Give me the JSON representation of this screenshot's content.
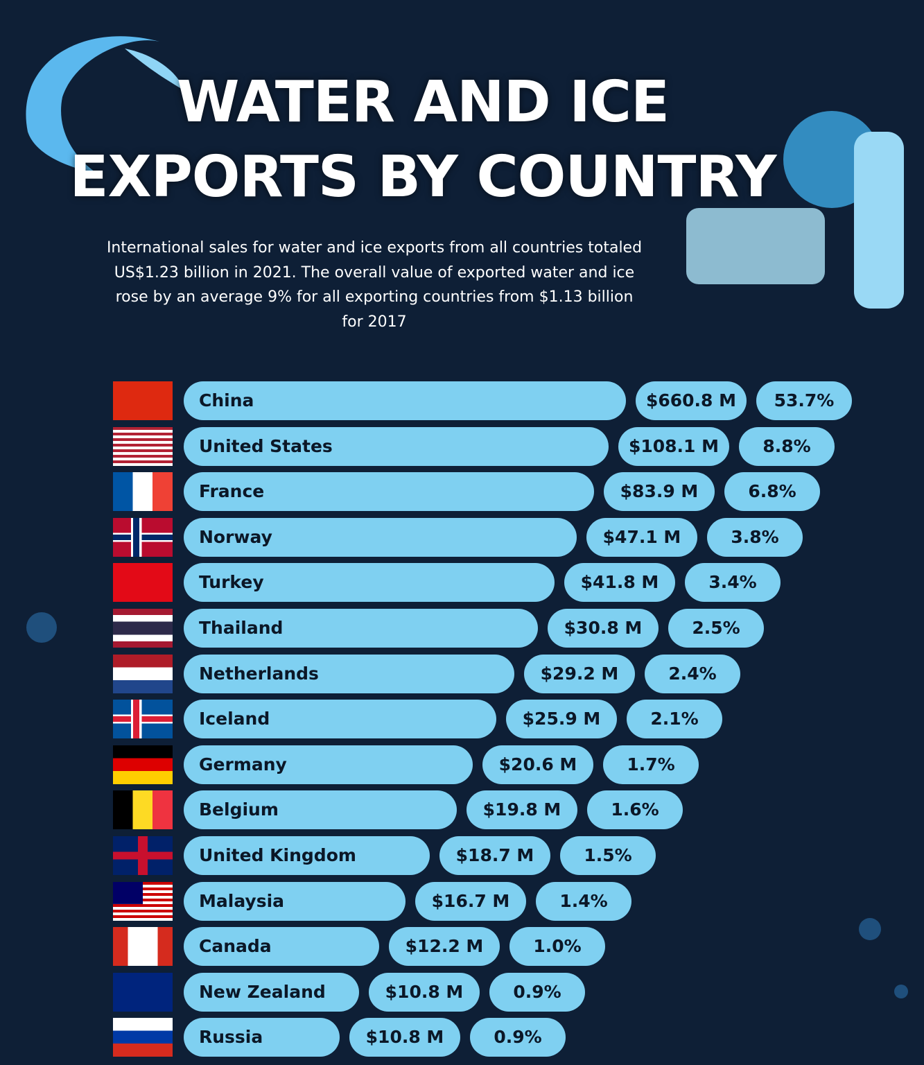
{
  "header": {
    "title": [
      "WATER AND ICE",
      "EXPORTS BY COUNTRY"
    ],
    "subtitle": "International sales for water and ice exports from all countries totaled US$1.23 billion in 2021. The overall value of exported water and ice rose by an average 9% for all exporting countries from $1.13 billion for 2017"
  },
  "rows": [
    {
      "country": "China",
      "value": "$660.8 M",
      "share": "53.7%"
    },
    {
      "country": "United States",
      "value": "$108.1 M",
      "share": "8.8%"
    },
    {
      "country": "France",
      "value": "$83.9 M",
      "share": "6.8%"
    },
    {
      "country": "Norway",
      "value": "$47.1 M",
      "share": "3.8%"
    },
    {
      "country": "Turkey",
      "value": "$41.8 M",
      "share": "3.4%"
    },
    {
      "country": "Thailand",
      "value": "$30.8 M",
      "share": "2.5%"
    },
    {
      "country": "Netherlands",
      "value": "$29.2 M",
      "share": "2.4%"
    },
    {
      "country": "Iceland",
      "value": "$25.9 M",
      "share": "2.1%"
    },
    {
      "country": "Germany",
      "value": "$20.6 M",
      "share": "1.7%"
    },
    {
      "country": "Belgium",
      "value": "$19.8 M",
      "share": "1.6%"
    },
    {
      "country": "United Kingdom",
      "value": "$18.7 M",
      "share": "1.5%"
    },
    {
      "country": "Malaysia",
      "value": "$16.7 M",
      "share": "1.4%"
    },
    {
      "country": "Canada",
      "value": "$12.2 M",
      "share": "1.0%"
    },
    {
      "country": "New Zealand",
      "value": "$10.8 M",
      "share": "0.9%"
    },
    {
      "country": "Russia",
      "value": "$10.8 M",
      "share": "0.9%"
    }
  ]
}
